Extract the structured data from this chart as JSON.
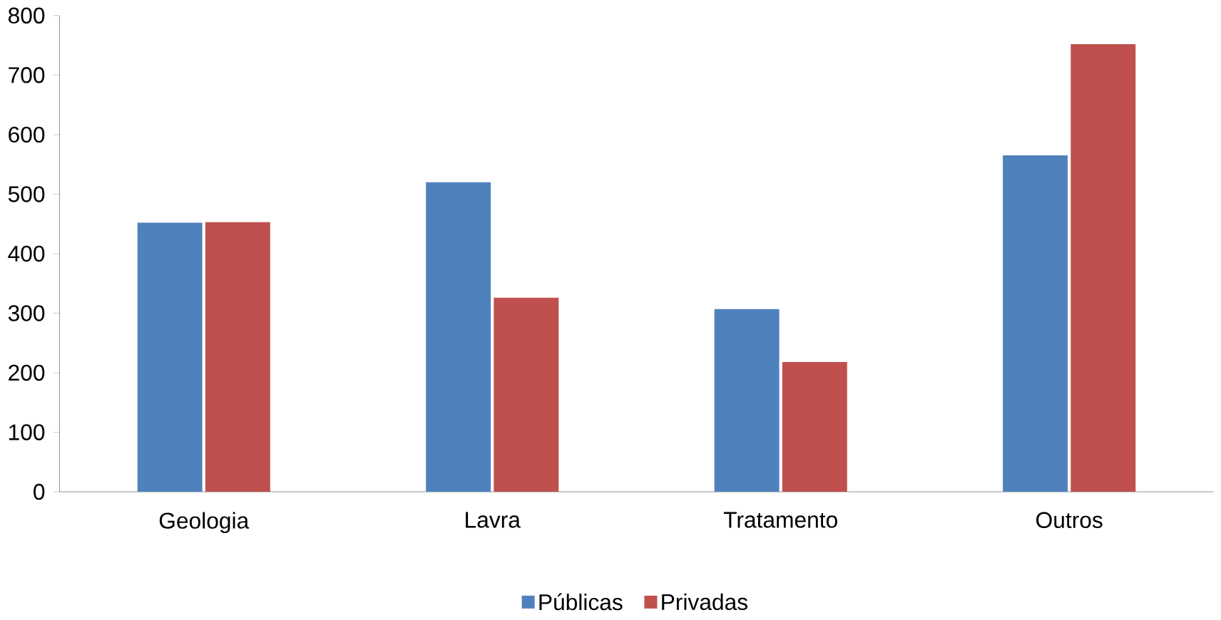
{
  "chart_data": {
    "type": "bar",
    "categories": [
      "Geologia",
      "Lavra",
      "Tratamento",
      "Outros"
    ],
    "series": [
      {
        "name": "Públicas",
        "color": "#4f81bd",
        "values": [
          452,
          520,
          307,
          565
        ]
      },
      {
        "name": "Privadas",
        "color": "#c0504d",
        "values": [
          453,
          326,
          218,
          752
        ]
      }
    ],
    "ylim": [
      0,
      800
    ],
    "yticks": [
      0,
      100,
      200,
      300,
      400,
      500,
      600,
      700,
      800
    ],
    "legend": "bottom"
  }
}
